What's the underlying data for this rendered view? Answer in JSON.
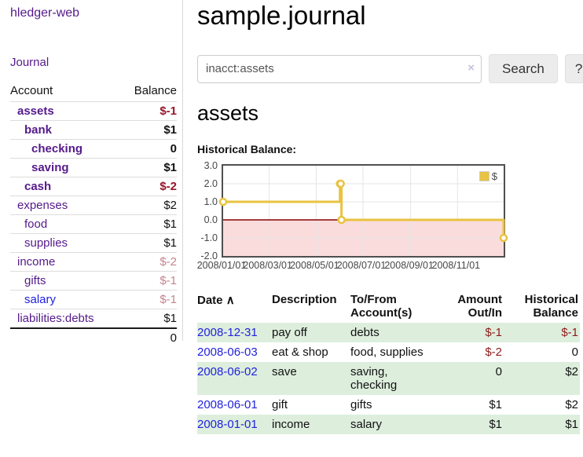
{
  "app": {
    "title": "hledger-web"
  },
  "sidebar": {
    "journal_label": "Journal",
    "accounts": {
      "account_header": "Account",
      "balance_header": "Balance",
      "rows": [
        {
          "name": "assets",
          "balance": "$-1"
        },
        {
          "name": "bank",
          "balance": "$1"
        },
        {
          "name": "checking",
          "balance": "0"
        },
        {
          "name": "saving",
          "balance": "$1"
        },
        {
          "name": "cash",
          "balance": "$-2"
        },
        {
          "name": "expenses",
          "balance": "$2"
        },
        {
          "name": "food",
          "balance": "$1"
        },
        {
          "name": "supplies",
          "balance": "$1"
        },
        {
          "name": "income",
          "balance": "$-2"
        },
        {
          "name": "gifts",
          "balance": "$-1"
        },
        {
          "name": "salary",
          "balance": "$-1"
        },
        {
          "name": "liabilities:debts",
          "balance": "$1"
        }
      ],
      "total": "0"
    }
  },
  "main": {
    "title": "sample.journal",
    "search": {
      "value": "inacct:assets",
      "clear_icon": "×",
      "button_label": "Search",
      "help_label": "?"
    },
    "account_heading": "assets",
    "chart_label": "Historical Balance:"
  },
  "chart_data": {
    "type": "line",
    "style": "step-after",
    "title": "Historical Balance",
    "series": [
      {
        "name": "$",
        "color": "#e9c341",
        "x": [
          "2008-01-01",
          "2008-06-01",
          "2008-06-02",
          "2008-06-03",
          "2008-12-31"
        ],
        "y": [
          1,
          2,
          2,
          0,
          -1
        ]
      }
    ],
    "xlim": [
      "2008-01-01",
      "2008-12-31"
    ],
    "ylim": [
      -2,
      3
    ],
    "x_tick_labels": [
      "2008/01/01",
      "2008/03/01",
      "2008/05/01",
      "2008/07/01",
      "2008/09/01",
      "2008/11/01"
    ],
    "y_tick_labels": [
      "3.0",
      "2.0",
      "1.0",
      "0.0",
      "-1.0",
      "-2.0"
    ],
    "grid": true,
    "legend_position": "top-right",
    "zero_line_color": "#8b0000",
    "negative_region_color": "#fadcdc",
    "grid_color": "#e5e5e5"
  },
  "register": {
    "headers": {
      "date": "Date",
      "sort_icon": "∧",
      "description": "Description",
      "account": "To/From Account(s)",
      "amount": "Amount Out/In",
      "balance": "Historical Balance"
    },
    "rows": [
      {
        "date": "2008-12-31",
        "description": "pay off",
        "account": "debts",
        "amount": "$-1",
        "balance": "$-1"
      },
      {
        "date": "2008-06-03",
        "description": "eat & shop",
        "account": "food, supplies",
        "amount": "$-2",
        "balance": "0"
      },
      {
        "date": "2008-06-02",
        "description": "save",
        "account": "saving, checking",
        "amount": "0",
        "balance": "$2"
      },
      {
        "date": "2008-06-01",
        "description": "gift",
        "account": "gifts",
        "amount": "$1",
        "balance": "$2"
      },
      {
        "date": "2008-01-01",
        "description": "income",
        "account": "salary",
        "amount": "$1",
        "balance": "$1"
      }
    ]
  }
}
